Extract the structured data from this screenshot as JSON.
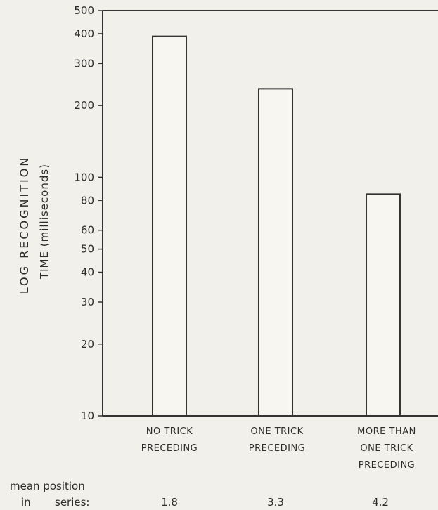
{
  "chart_data": {
    "type": "bar",
    "categories": [
      [
        "NO TRICK",
        "PRECEDING"
      ],
      [
        "ONE TRICK",
        "PRECEDING"
      ],
      [
        "MORE THAN",
        "ONE TRICK",
        "PRECEDING"
      ]
    ],
    "values": [
      390,
      235,
      85
    ],
    "ylabel_line1": "LOG   RECOGNITION",
    "ylabel_line2": "TIME (milliseconds)",
    "yscale": "log",
    "ylim": [
      10,
      500
    ],
    "yticks": [
      10,
      20,
      30,
      40,
      50,
      60,
      80,
      100,
      200,
      300,
      400,
      500
    ],
    "ytick_labels": [
      "10",
      "20",
      "30",
      "40",
      "50",
      "60",
      "80",
      "100",
      "200",
      "300",
      "400",
      "500"
    ],
    "mean_position": {
      "label_line1": "mean  position",
      "label_line2_a": "in",
      "label_line2_b": "series:",
      "values": [
        "1.8",
        "3.3",
        "4.2"
      ]
    },
    "grid": false
  }
}
